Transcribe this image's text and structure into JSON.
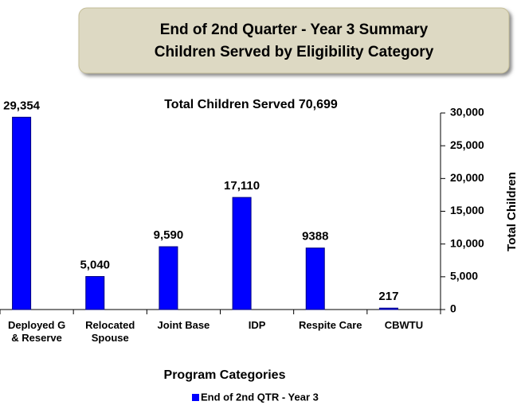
{
  "chart_data": {
    "type": "bar",
    "title": [
      "End of 2nd Quarter - Year 3 Summary",
      "Children Served by Eligibility  Category"
    ],
    "subtitle": "Total Children Served 70,699",
    "x_label": "Program Categories",
    "y_label": "Total Children",
    "categories": [
      "Deployed G & Reserve",
      "Relocated Spouse",
      "Joint Base",
      "IDP",
      "Respite Care",
      "CBWTU"
    ],
    "series": [
      {
        "name": "End of 2nd QTR - Year 3",
        "color": "#0000ff",
        "values": [
          29354,
          5040,
          9590,
          17110,
          9388,
          217
        ],
        "value_labels": [
          "29,354",
          "5,040",
          "9,590",
          "17,110",
          "9388",
          "217"
        ]
      }
    ],
    "ylim": [
      0,
      30000
    ],
    "yticks": [
      0,
      {
        "value": 5000,
        "label": "5,000"
      },
      {
        "value": 10000,
        "label": "10,000"
      },
      {
        "value": 15000,
        "label": "15,000"
      },
      {
        "value": 20000,
        "label": "20,000"
      },
      {
        "value": 25000,
        "label": "25,000"
      },
      {
        "value": 30000,
        "label": "30,000"
      }
    ],
    "y_axis_side": "right",
    "legend": "bottom"
  }
}
